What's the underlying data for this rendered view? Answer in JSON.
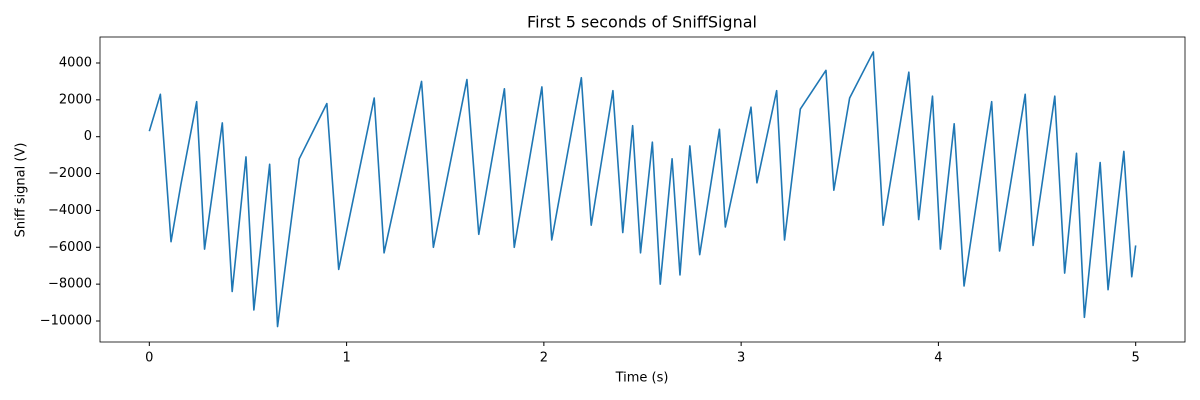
{
  "chart_data": {
    "type": "line",
    "title": "First 5 seconds of SniffSignal",
    "xlabel": "Time (s)",
    "ylabel": "Sniff signal (V)",
    "color": "#1f77b4",
    "x": [
      0.0,
      0.056,
      0.11,
      0.16,
      0.24,
      0.28,
      0.37,
      0.42,
      0.49,
      0.53,
      0.61,
      0.65,
      0.76,
      0.9,
      0.96,
      1.14,
      1.19,
      1.38,
      1.44,
      1.61,
      1.67,
      1.8,
      1.85,
      1.99,
      2.04,
      2.19,
      2.24,
      2.35,
      2.4,
      2.45,
      2.49,
      2.55,
      2.59,
      2.65,
      2.69,
      2.74,
      2.79,
      2.89,
      2.92,
      3.05,
      3.08,
      3.18,
      3.22,
      3.3,
      3.43,
      3.47,
      3.55,
      3.67,
      3.72,
      3.85,
      3.9,
      3.97,
      4.01,
      4.08,
      4.13,
      4.27,
      4.31,
      4.44,
      4.48,
      4.59,
      4.64,
      4.7,
      4.74,
      4.82,
      4.86,
      4.94,
      4.98,
      5.0
    ],
    "values": [
      300,
      2300,
      -5700,
      -2600,
      1900,
      -6100,
      750,
      -8400,
      -1100,
      -9400,
      -1500,
      -10300,
      -1200,
      1800,
      -7200,
      2100,
      -6300,
      3000,
      -6000,
      3100,
      -5300,
      2600,
      -6000,
      2700,
      -5600,
      3200,
      -4800,
      2500,
      -5200,
      600,
      -6300,
      -300,
      -8000,
      -1200,
      -7500,
      -500,
      -6400,
      400,
      -4900,
      1600,
      -2500,
      2500,
      -5600,
      1500,
      3600,
      -2900,
      2100,
      4600,
      -4800,
      3500,
      -4500,
      2200,
      -6100,
      700,
      -8100,
      1900,
      -6200,
      2300,
      -5900,
      2200,
      -7400,
      -900,
      -9800,
      -1400,
      -8300,
      -800,
      -7600,
      -5900
    ],
    "xlim": [
      -0.25,
      5.25
    ],
    "ylim": [
      -11140,
      5410
    ],
    "xticks": [
      0,
      1,
      2,
      3,
      4,
      5
    ],
    "yticks": [
      {
        "value": -10000,
        "label": "−10000"
      },
      {
        "value": -8000,
        "label": "−8000"
      },
      {
        "value": -6000,
        "label": "−6000"
      },
      {
        "value": -4000,
        "label": "−4000"
      },
      {
        "value": -2000,
        "label": "−2000"
      },
      0,
      2000,
      4000
    ]
  }
}
